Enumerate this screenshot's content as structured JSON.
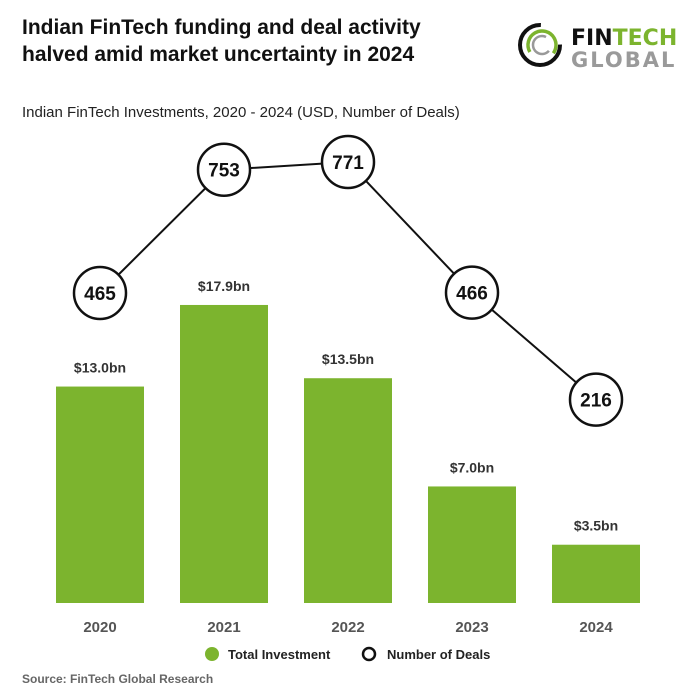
{
  "header": {
    "title": "Indian FinTech funding and deal activity halved amid market uncertainty in 2024",
    "logo_text": [
      "FINTECH",
      "GLOBAL"
    ]
  },
  "footer": {
    "source": "Source: FinTech Global Research"
  },
  "colors": {
    "bar": "#7cb42e",
    "line": "#111111",
    "logo_green": "#7cb42e",
    "logo_gray": "#9a9a9a"
  },
  "chart_data": {
    "type": "bar",
    "title": "Indian FinTech Investments, 2020 - 2024 (USD, Number of Deals)",
    "categories": [
      "2020",
      "2021",
      "2022",
      "2023",
      "2024"
    ],
    "series": [
      {
        "name": "Total Investment",
        "type": "bar",
        "unit": "USD bn",
        "values": [
          13.0,
          17.9,
          13.5,
          7.0,
          3.5
        ],
        "labels": [
          "$13.0bn",
          "$17.9bn",
          "$13.5bn",
          "$7.0bn",
          "$3.5bn"
        ]
      },
      {
        "name": "Number of Deals",
        "type": "line",
        "values": [
          465,
          753,
          771,
          466,
          216
        ]
      }
    ],
    "legend": "bottom",
    "grid": false
  }
}
